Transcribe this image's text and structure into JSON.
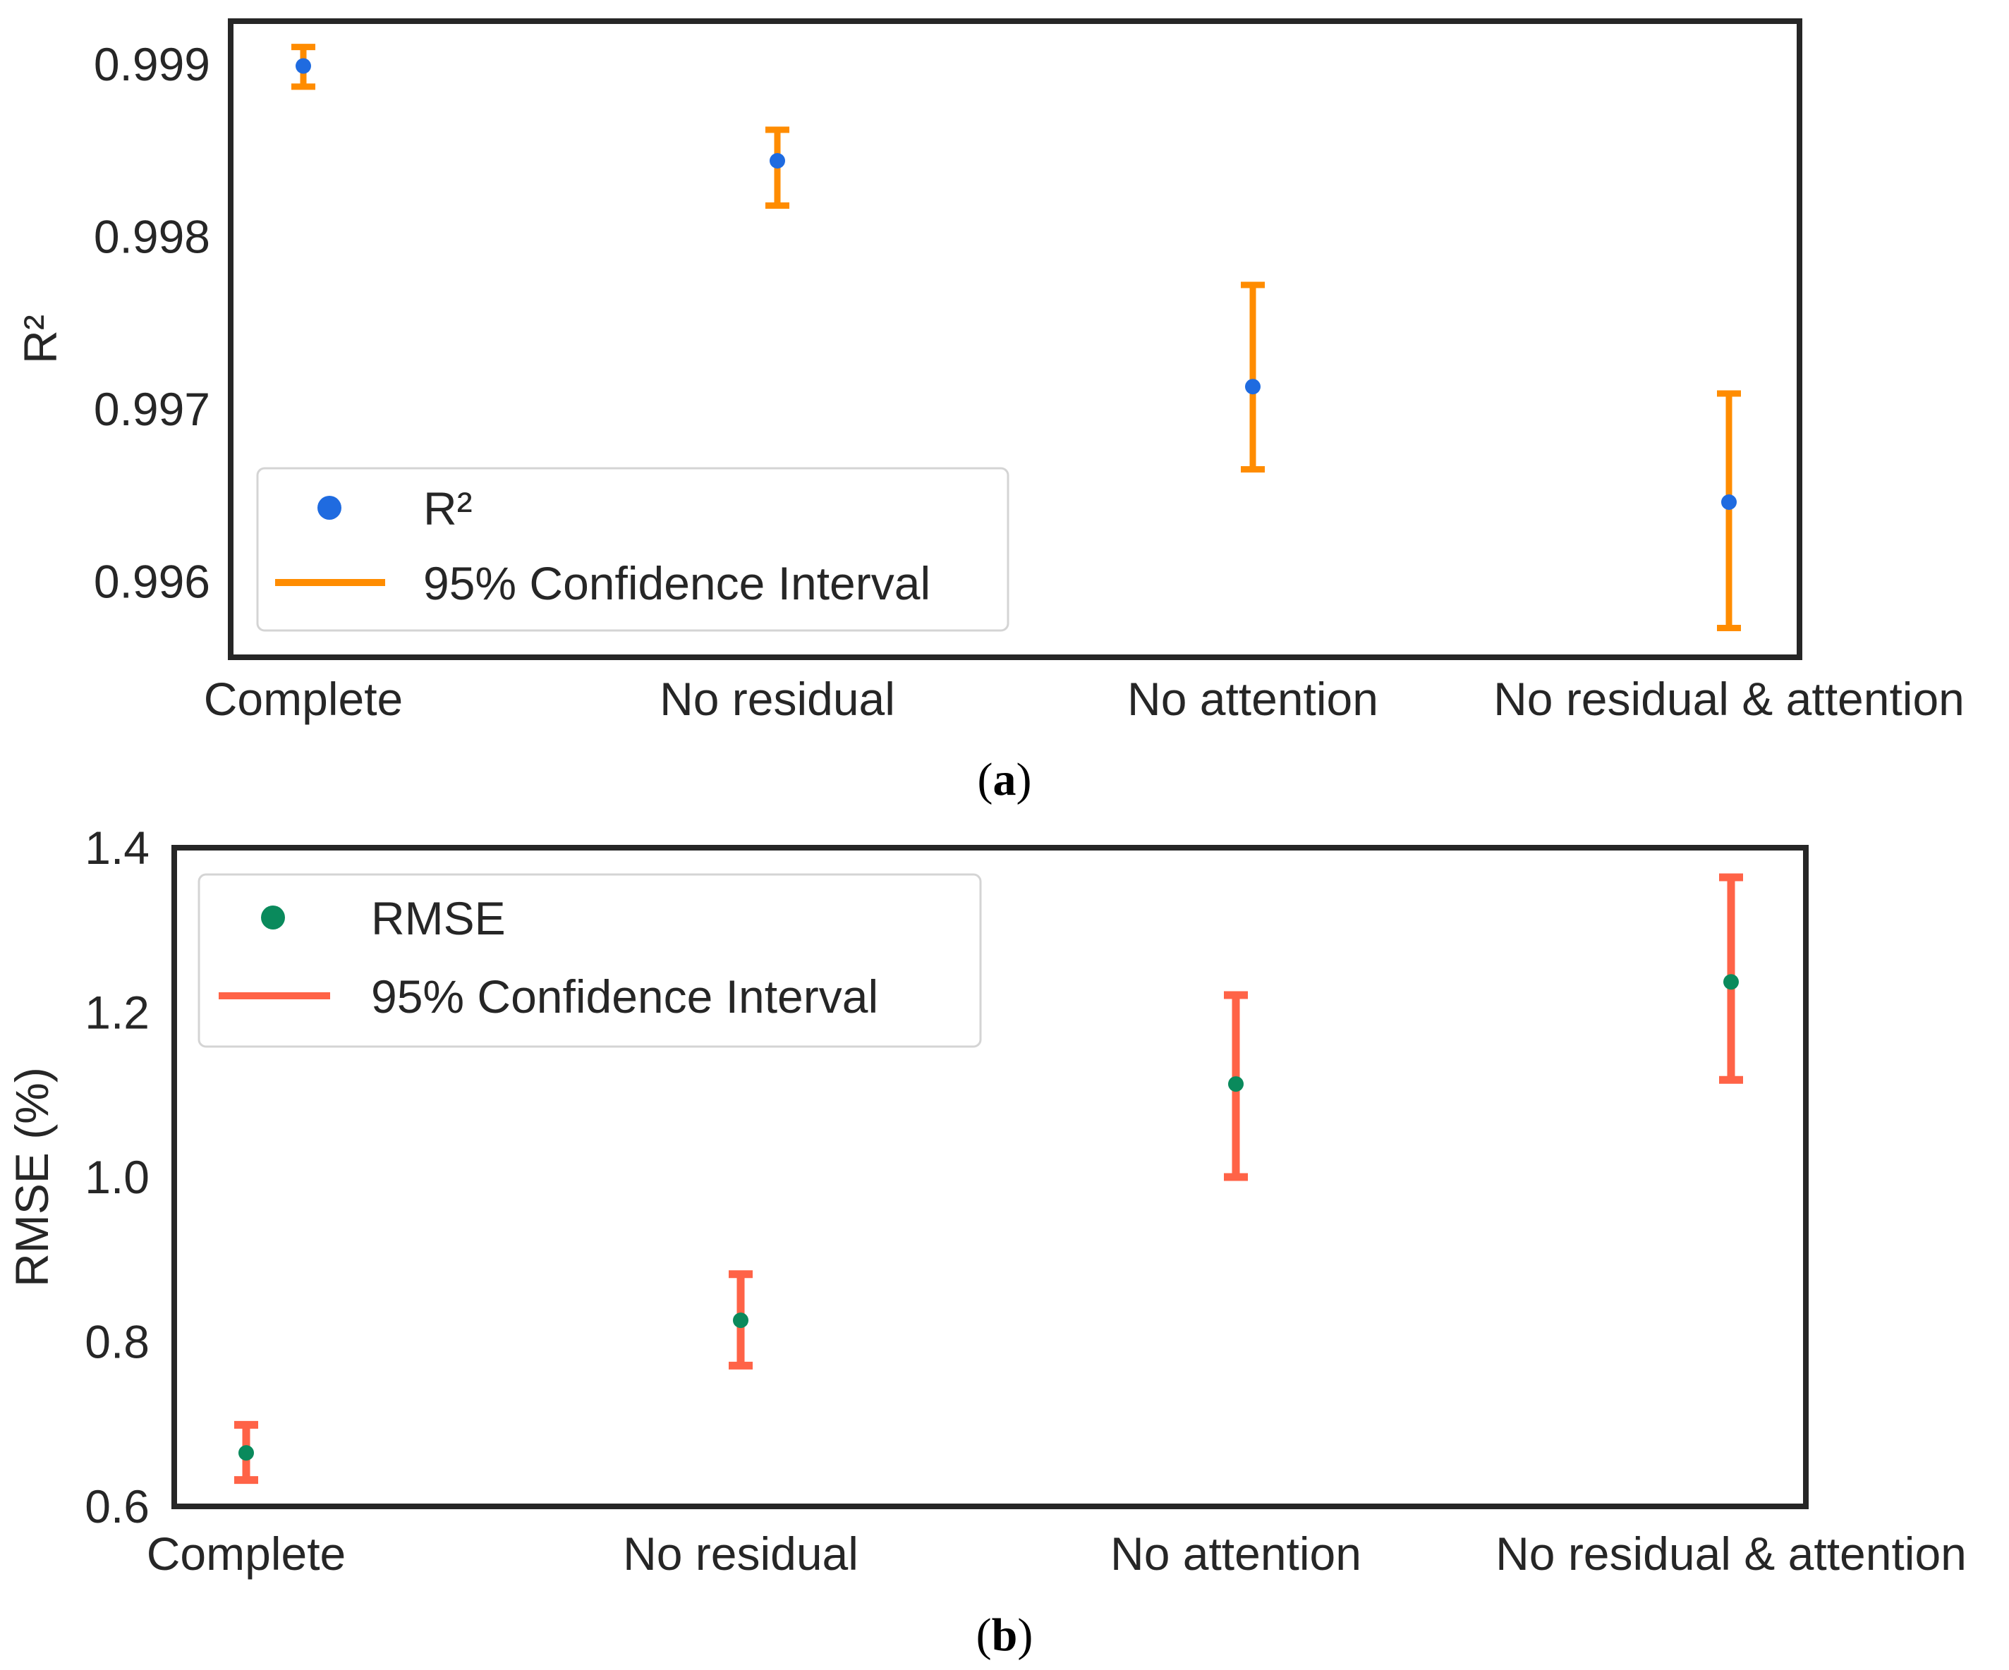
{
  "chart_data": [
    {
      "type": "scatter",
      "panel": "a",
      "ylabel": "R²",
      "xlabel": "",
      "categories": [
        "Complete",
        "No residual",
        "No attention",
        "No residual & attention"
      ],
      "yticks": [
        "0.996",
        "0.997",
        "0.998",
        "0.999"
      ],
      "ytick_values": [
        0.996,
        0.997,
        0.998,
        0.999
      ],
      "ylim": [
        0.99556,
        0.99925
      ],
      "grid": false,
      "legend_position": "bottom-left",
      "series": [
        {
          "name": "R²",
          "kind": "point",
          "color": "#1f6be0",
          "values": [
            0.99899,
            0.99844,
            0.99713,
            0.99646
          ]
        },
        {
          "name": "95% Confidence Interval",
          "kind": "errorbar",
          "color": "#ff8c00",
          "lower": [
            0.99887,
            0.99818,
            0.99665,
            0.99573
          ],
          "upper": [
            0.9991,
            0.99862,
            0.99772,
            0.99709
          ]
        }
      ]
    },
    {
      "type": "scatter",
      "panel": "b",
      "ylabel": "RMSE (%)",
      "xlabel": "",
      "categories": [
        "Complete",
        "No residual",
        "No attention",
        "No residual & attention"
      ],
      "yticks": [
        "0.6",
        "0.8",
        "1.0",
        "1.2",
        "1.4"
      ],
      "ytick_values": [
        0.6,
        0.8,
        1.0,
        1.2,
        1.4
      ],
      "ylim": [
        0.6,
        1.4
      ],
      "grid": false,
      "legend_position": "top-left",
      "series": [
        {
          "name": "RMSE",
          "kind": "point",
          "color": "#0a8a5c",
          "values": [
            0.665,
            0.826,
            1.113,
            1.237
          ]
        },
        {
          "name": "95% Confidence Interval",
          "kind": "errorbar",
          "color": "#ff6347",
          "lower": [
            0.632,
            0.771,
            1.0,
            1.118
          ],
          "upper": [
            0.699,
            0.882,
            1.221,
            1.364
          ]
        }
      ]
    }
  ],
  "captions": {
    "a": {
      "open": "(",
      "letter": "a",
      "close": ")"
    },
    "b": {
      "open": "(",
      "letter": "b",
      "close": ")"
    }
  }
}
